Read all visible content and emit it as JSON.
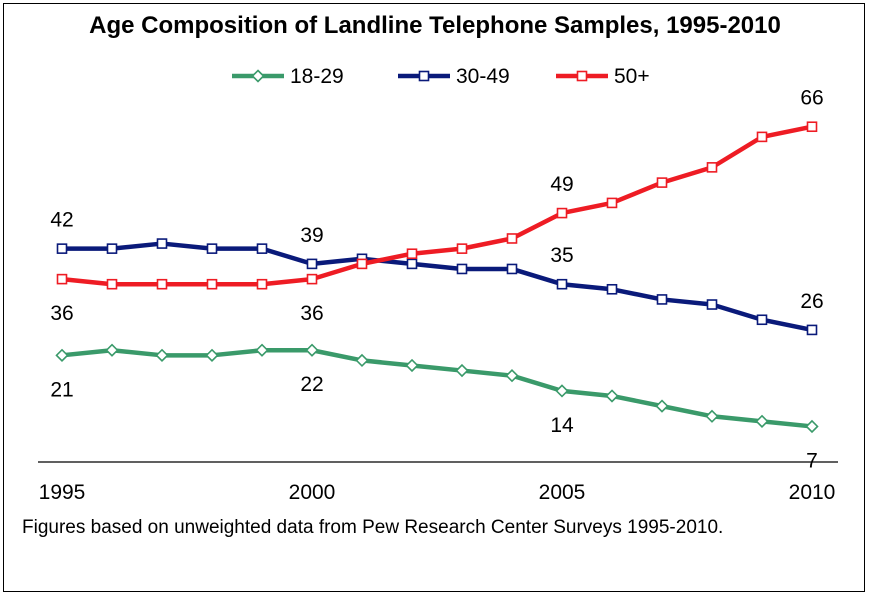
{
  "chart_data": {
    "type": "line",
    "title": "Age Composition of Landline Telephone Samples, 1995-2010",
    "footnote": "Figures based on unweighted data from Pew Research Center Surveys 1995-2010.",
    "x": [
      1995,
      1996,
      1997,
      1998,
      1999,
      2000,
      2001,
      2002,
      2003,
      2004,
      2005,
      2006,
      2007,
      2008,
      2009,
      2010
    ],
    "x_ticks": [
      "1995",
      "2000",
      "2005",
      "2010"
    ],
    "xlim": [
      1995,
      2010
    ],
    "ylim": [
      0,
      80
    ],
    "grid": false,
    "legend_position": "top",
    "series": [
      {
        "name": "18-29",
        "color": "#3a9a6a",
        "marker": "diamond",
        "values": [
          21,
          22,
          21,
          21,
          22,
          22,
          20,
          19,
          18,
          17,
          14,
          13,
          11,
          9,
          8,
          7
        ]
      },
      {
        "name": "30-49",
        "color": "#0a1a7a",
        "marker": "square",
        "values": [
          42,
          42,
          43,
          42,
          42,
          39,
          40,
          39,
          38,
          38,
          35,
          34,
          32,
          31,
          28,
          26
        ]
      },
      {
        "name": "50+",
        "color": "#ee1c24",
        "marker": "square",
        "values": [
          36,
          35,
          35,
          35,
          35,
          36,
          39,
          41,
          42,
          44,
          49,
          51,
          55,
          58,
          64,
          66
        ]
      }
    ],
    "data_labels": [
      {
        "series": "30-49",
        "x": 1995,
        "text": "42",
        "pos": "above"
      },
      {
        "series": "50+",
        "x": 1995,
        "text": "36",
        "pos": "below"
      },
      {
        "series": "18-29",
        "x": 1995,
        "text": "21",
        "pos": "below"
      },
      {
        "series": "30-49",
        "x": 2000,
        "text": "39",
        "pos": "above"
      },
      {
        "series": "50+",
        "x": 2000,
        "text": "36",
        "pos": "below"
      },
      {
        "series": "18-29",
        "x": 2000,
        "text": "22",
        "pos": "below"
      },
      {
        "series": "50+",
        "x": 2005,
        "text": "49",
        "pos": "above"
      },
      {
        "series": "30-49",
        "x": 2005,
        "text": "35",
        "pos": "above"
      },
      {
        "series": "18-29",
        "x": 2005,
        "text": "14",
        "pos": "below"
      },
      {
        "series": "50+",
        "x": 2010,
        "text": "66",
        "pos": "above"
      },
      {
        "series": "30-49",
        "x": 2010,
        "text": "26",
        "pos": "above"
      },
      {
        "series": "18-29",
        "x": 2010,
        "text": "7",
        "pos": "below"
      }
    ]
  }
}
